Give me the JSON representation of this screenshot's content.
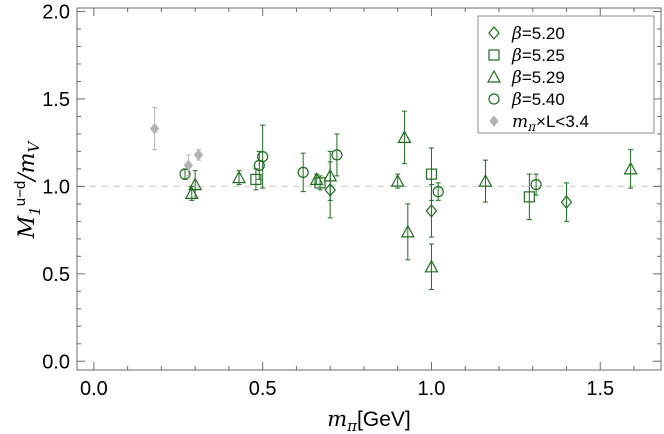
{
  "chart_data": {
    "type": "scatter",
    "x_label": "m_π[GeV]",
    "y_label": "M_1^{u-d}/m_V",
    "xlim": [
      -0.05,
      1.68
    ],
    "ylim": [
      -0.05,
      2.02
    ],
    "x_ticks": [
      "0.0",
      "0.5",
      "1.0",
      "1.5"
    ],
    "y_ticks": [
      "0.0",
      "0.5",
      "1.0",
      "1.5",
      "2.0"
    ],
    "reference_line": {
      "y": 1.0,
      "style": "dashed",
      "color": "#d9d9d9"
    },
    "grid": false,
    "legend_position": "top-right",
    "series": [
      {
        "name": "β=5.20",
        "marker": "diamond",
        "color": "#1e6b1e",
        "points": [
          {
            "x": 0.7,
            "y": 0.98,
            "err": 0.16
          },
          {
            "x": 1.0,
            "y": 0.86,
            "err": 0.15
          },
          {
            "x": 1.4,
            "y": 0.91,
            "err": 0.11
          }
        ]
      },
      {
        "name": "β=5.25",
        "marker": "square",
        "color": "#1e6b1e",
        "points": [
          {
            "x": 0.48,
            "y": 1.04,
            "err": 0.06
          },
          {
            "x": 0.67,
            "y": 1.02,
            "err": 0.04
          },
          {
            "x": 1.0,
            "y": 1.07,
            "err": 0.15
          },
          {
            "x": 1.29,
            "y": 0.94,
            "err": 0.13
          }
        ]
      },
      {
        "name": "β=5.29",
        "marker": "triangle",
        "color": "#1e6b1e",
        "points": [
          {
            "x": 0.29,
            "y": 0.96,
            "err": 0.04
          },
          {
            "x": 0.3,
            "y": 1.01,
            "err": 0.08
          },
          {
            "x": 0.43,
            "y": 1.05,
            "err": 0.04
          },
          {
            "x": 0.66,
            "y": 1.04,
            "err": 0.03
          },
          {
            "x": 0.7,
            "y": 1.06,
            "err": 0.14
          },
          {
            "x": 0.9,
            "y": 1.03,
            "err": 0.04
          },
          {
            "x": 0.92,
            "y": 1.28,
            "err": 0.15
          },
          {
            "x": 0.93,
            "y": 0.74,
            "err": 0.16
          },
          {
            "x": 1.0,
            "y": 0.54,
            "err": 0.13
          },
          {
            "x": 1.16,
            "y": 1.03,
            "err": 0.12
          },
          {
            "x": 1.59,
            "y": 1.1,
            "err": 0.11
          }
        ]
      },
      {
        "name": "β=5.40",
        "marker": "circle",
        "color": "#1e6b1e",
        "points": [
          {
            "x": 0.27,
            "y": 1.07,
            "err": 0.03
          },
          {
            "x": 0.49,
            "y": 1.12,
            "err": 0.08
          },
          {
            "x": 0.5,
            "y": 1.17,
            "err": 0.18
          },
          {
            "x": 0.62,
            "y": 1.08,
            "err": 0.11
          },
          {
            "x": 0.72,
            "y": 1.18,
            "err": 0.12
          },
          {
            "x": 1.02,
            "y": 0.97,
            "err": 0.05
          },
          {
            "x": 1.31,
            "y": 1.01,
            "err": 0.06
          }
        ]
      },
      {
        "name": "m_π×L<3.4",
        "marker": "filled-diamond",
        "color": "#b3b3b3",
        "points": [
          {
            "x": 0.18,
            "y": 1.33,
            "err": 0.12
          },
          {
            "x": 0.28,
            "y": 1.12,
            "err": 0.06
          },
          {
            "x": 0.31,
            "y": 1.18,
            "err": 0.03
          }
        ]
      }
    ]
  }
}
